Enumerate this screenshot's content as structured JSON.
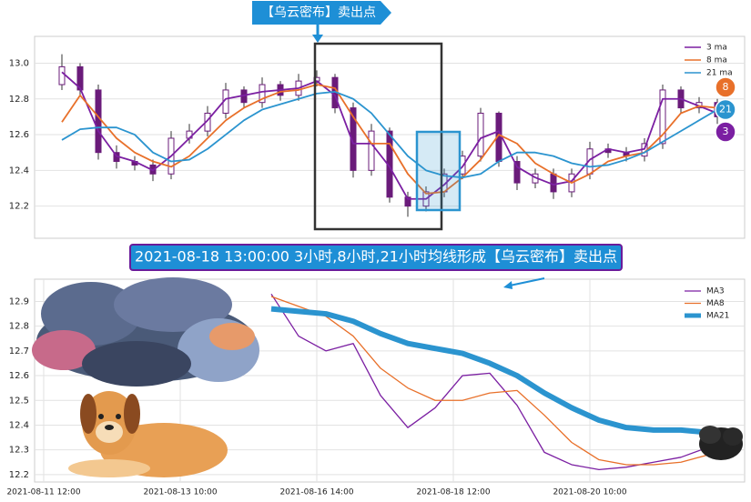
{
  "chart_data": [
    {
      "type": "candlestick",
      "annotation": "【乌云密布】卖出点",
      "x": [
        2,
        4,
        6,
        8,
        10,
        12,
        14,
        16,
        18,
        20,
        22,
        24,
        26,
        28,
        30,
        32,
        34,
        36,
        38,
        40,
        42,
        44,
        46,
        48,
        50,
        52,
        54,
        56,
        58,
        60,
        62,
        64,
        66,
        68,
        70,
        72,
        74
      ],
      "open": [
        12.88,
        12.98,
        12.85,
        12.5,
        12.45,
        12.43,
        12.38,
        12.58,
        12.62,
        12.72,
        12.85,
        12.78,
        12.88,
        12.82,
        12.9,
        12.92,
        12.75,
        12.4,
        12.62,
        12.25,
        12.2,
        12.28,
        12.38,
        12.48,
        12.72,
        12.45,
        12.33,
        12.38,
        12.28,
        12.38,
        12.52,
        12.5,
        12.48,
        12.55,
        12.85,
        12.75,
        12.78
      ],
      "close": [
        12.98,
        12.85,
        12.5,
        12.45,
        12.43,
        12.38,
        12.58,
        12.62,
        12.72,
        12.85,
        12.78,
        12.88,
        12.82,
        12.9,
        12.92,
        12.75,
        12.4,
        12.62,
        12.25,
        12.2,
        12.28,
        12.38,
        12.48,
        12.72,
        12.45,
        12.33,
        12.38,
        12.28,
        12.38,
        12.52,
        12.5,
        12.48,
        12.55,
        12.85,
        12.75,
        12.78,
        12.7
      ],
      "high": [
        13.05,
        13.0,
        12.88,
        12.54,
        12.48,
        12.46,
        12.62,
        12.66,
        12.76,
        12.89,
        12.87,
        12.92,
        12.9,
        12.94,
        12.96,
        12.94,
        12.78,
        12.66,
        12.64,
        12.28,
        12.31,
        12.41,
        12.51,
        12.75,
        12.73,
        12.48,
        12.41,
        12.41,
        12.41,
        12.56,
        12.55,
        12.53,
        12.58,
        12.88,
        12.87,
        12.81,
        12.8
      ],
      "low": [
        12.85,
        12.82,
        12.46,
        12.41,
        12.4,
        12.34,
        12.35,
        12.55,
        12.59,
        12.69,
        12.75,
        12.75,
        12.79,
        12.79,
        12.87,
        12.72,
        12.36,
        12.37,
        12.22,
        12.14,
        12.17,
        12.25,
        12.35,
        12.45,
        12.42,
        12.29,
        12.3,
        12.24,
        12.25,
        12.35,
        12.47,
        12.45,
        12.45,
        12.52,
        12.72,
        12.72,
        12.66
      ],
      "candle_color": "#6a1b7a",
      "series": [
        {
          "name": "3 ma",
          "color": "#7b1fa2",
          "values": [
            12.95,
            12.86,
            12.62,
            12.48,
            12.45,
            12.4,
            12.48,
            12.58,
            12.68,
            12.8,
            12.82,
            12.84,
            12.85,
            12.86,
            12.9,
            12.82,
            12.55,
            12.55,
            12.42,
            12.24,
            12.24,
            12.32,
            12.42,
            12.58,
            12.62,
            12.42,
            12.36,
            12.32,
            12.34,
            12.46,
            12.52,
            12.5,
            12.52,
            12.8,
            12.8,
            12.76,
            12.72
          ]
        },
        {
          "name": "8 ma",
          "color": "#e8702a",
          "values": [
            12.67,
            12.82,
            12.7,
            12.58,
            12.5,
            12.45,
            12.42,
            12.48,
            12.58,
            12.68,
            12.75,
            12.8,
            12.84,
            12.85,
            12.88,
            12.86,
            12.7,
            12.55,
            12.55,
            12.38,
            12.27,
            12.28,
            12.36,
            12.46,
            12.6,
            12.55,
            12.44,
            12.38,
            12.33,
            12.38,
            12.45,
            12.48,
            12.5,
            12.6,
            12.72,
            12.76,
            12.75
          ]
        },
        {
          "name": "21 ma",
          "color": "#2b94cf",
          "values": [
            12.57,
            12.63,
            12.64,
            12.64,
            12.6,
            12.5,
            12.45,
            12.46,
            12.52,
            12.6,
            12.68,
            12.74,
            12.77,
            12.8,
            12.83,
            12.84,
            12.8,
            12.72,
            12.6,
            12.48,
            12.4,
            12.37,
            12.36,
            12.38,
            12.45,
            12.5,
            12.5,
            12.48,
            12.44,
            12.42,
            12.43,
            12.46,
            12.5,
            12.56,
            12.62,
            12.68,
            12.74
          ]
        }
      ],
      "badges": [
        {
          "text": "8",
          "color": "#e8702a"
        },
        {
          "text": "21",
          "color": "#2b94cf"
        },
        {
          "text": "3",
          "color": "#7b1fa2"
        }
      ],
      "xlim": [
        -1,
        77
      ],
      "ylim": [
        12.02,
        13.15
      ],
      "yticks": [
        12.2,
        12.4,
        12.6,
        12.8,
        {
          "value": 13,
          "label": "13.0"
        }
      ],
      "grid": true
    },
    {
      "type": "line",
      "annotation": "2021-08-18 13:00:00 3小时,8小时,21小时均线形成【乌云密布】卖出点",
      "x": [
        25,
        28,
        31,
        34,
        37,
        40,
        43,
        46,
        49,
        52,
        55,
        58,
        61,
        64,
        67,
        70,
        73
      ],
      "series": [
        {
          "name": "MA3",
          "color": "#7b1fa2",
          "width": 1.3,
          "values": [
            12.93,
            12.76,
            12.7,
            12.73,
            12.52,
            12.39,
            12.47,
            12.6,
            12.61,
            12.48,
            12.29,
            12.24,
            12.22,
            12.23,
            12.25,
            12.27,
            12.31
          ]
        },
        {
          "name": "MA8",
          "color": "#e8702a",
          "width": 1.3,
          "values": [
            12.92,
            12.88,
            12.84,
            12.76,
            12.63,
            12.55,
            12.5,
            12.5,
            12.53,
            12.54,
            12.44,
            12.33,
            12.26,
            12.24,
            12.24,
            12.25,
            12.28
          ]
        },
        {
          "name": "MA21",
          "color": "#2b94cf",
          "width": 6,
          "values": [
            12.87,
            12.86,
            12.85,
            12.82,
            12.77,
            12.73,
            12.71,
            12.69,
            12.65,
            12.6,
            12.53,
            12.47,
            12.42,
            12.39,
            12.38,
            12.38,
            12.37
          ]
        }
      ],
      "xlim": [
        -1,
        77
      ],
      "ylim": [
        12.17,
        12.99
      ],
      "xticks": [
        {
          "value": 0,
          "label": "2021-08-11 12:00"
        },
        {
          "value": 15,
          "label": "2021-08-13 10:00"
        },
        {
          "value": 30,
          "label": "2021-08-16 14:00"
        },
        {
          "value": 45,
          "label": "2021-08-18 12:00"
        },
        {
          "value": 60,
          "label": "2021-08-20 10:00"
        }
      ],
      "yticks": [
        12.2,
        12.3,
        12.4,
        12.5,
        12.6,
        12.7,
        12.8,
        12.9
      ],
      "grid": true
    }
  ]
}
